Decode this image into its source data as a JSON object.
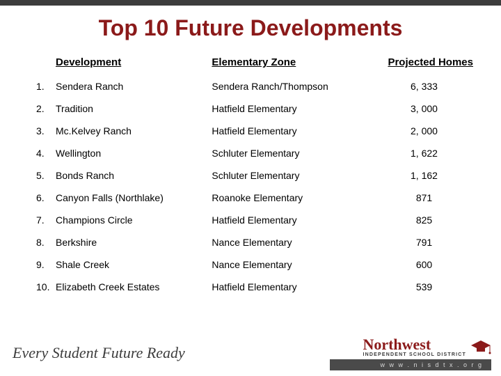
{
  "title": "Top 10 Future Developments",
  "columns": {
    "development": "Development",
    "zone": "Elementary Zone",
    "homes": "Projected Homes"
  },
  "rows": [
    {
      "n": "1.",
      "dev": "Sendera Ranch",
      "zone": "Sendera Ranch/Thompson",
      "homes": "6, 333"
    },
    {
      "n": "2.",
      "dev": "Tradition",
      "zone": "Hatfield Elementary",
      "homes": "3, 000"
    },
    {
      "n": "3.",
      "dev": "Mc.Kelvey Ranch",
      "zone": "Hatfield Elementary",
      "homes": "2, 000"
    },
    {
      "n": "4.",
      "dev": "Wellington",
      "zone": "Schluter Elementary",
      "homes": "1, 622"
    },
    {
      "n": "5.",
      "dev": "Bonds Ranch",
      "zone": "Schluter Elementary",
      "homes": "1, 162"
    },
    {
      "n": "6.",
      "dev": "Canyon Falls (Northlake)",
      "zone": "Roanoke Elementary",
      "homes": "871"
    },
    {
      "n": "7.",
      "dev": "Champions Circle",
      "zone": "Hatfield Elementary",
      "homes": "825"
    },
    {
      "n": "8.",
      "dev": "Berkshire",
      "zone": "Nance Elementary",
      "homes": "791"
    },
    {
      "n": "9.",
      "dev": "Shale Creek",
      "zone": "Nance Elementary",
      "homes": "600"
    },
    {
      "n": "10.",
      "dev": "Elizabeth Creek Estates",
      "zone": "Hatfield Elementary",
      "homes": "539"
    }
  ],
  "footer": {
    "tagline": "Every Student Future Ready",
    "brand": "Northwest",
    "subbrand": "INDEPENDENT SCHOOL DISTRICT",
    "url": "w w w . n i s d t x . o r g"
  },
  "colors": {
    "title": "#8b1a1a",
    "topbar": "#3d3d3d",
    "urlbar_bg": "#4a4a4a",
    "cap": "#8b1a1a"
  }
}
